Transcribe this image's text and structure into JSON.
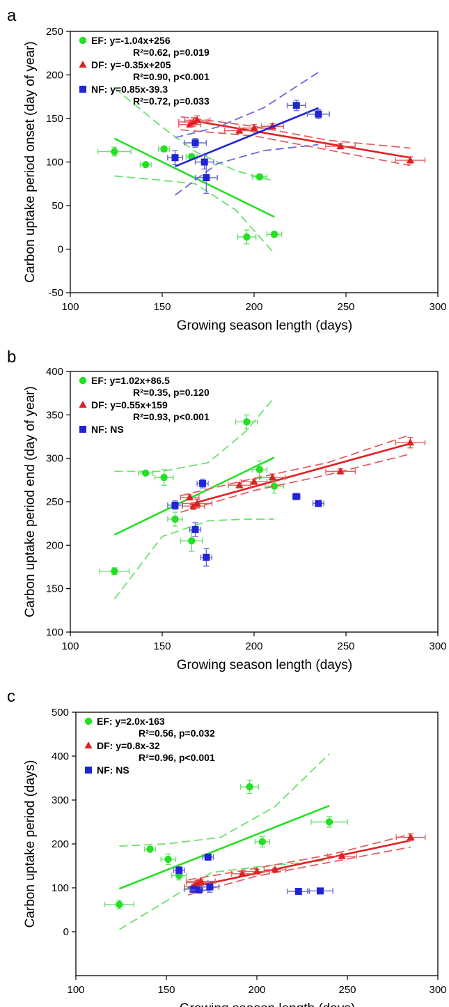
{
  "colors": {
    "EF": "#22e022",
    "DF": "#e02020",
    "NF": "#1f24d6",
    "EF_ci": "#6ee06e",
    "DF_ci": "#e06060",
    "NF_ci": "#6a6ad8"
  },
  "chart_data": [
    {
      "panel": "a",
      "type": "scatter",
      "xlabel": "Growing season length (days)",
      "ylabel": "Carbon uptake period onset (day of year)",
      "xlim": [
        100,
        300
      ],
      "ylim": [
        -50,
        250
      ],
      "xticks": [
        "100",
        "150",
        "200",
        "250",
        "300"
      ],
      "yticks": [
        "-50",
        "0",
        "50",
        "100",
        "150",
        "200",
        "250"
      ],
      "legend": [
        {
          "key": "EF",
          "marker": "circle",
          "line1": "EF: y=-1.04x+256",
          "line2": "R²=0.62, p=0.019"
        },
        {
          "key": "DF",
          "marker": "triangle",
          "line1": "DF: y=-0.35x+205",
          "line2": "R²=0.90, p<0.001"
        },
        {
          "key": "NF",
          "marker": "square",
          "line1": "NF: y=0.85x-39.3",
          "line2": "R²=0.72, p=0.033"
        }
      ],
      "series": [
        {
          "key": "EF",
          "marker": "circle",
          "points": [
            [
              124,
              112,
              9,
              5
            ],
            [
              141,
              97,
              3,
              2
            ],
            [
              151,
              115,
              3,
              3
            ],
            [
              157,
              105,
              4,
              8
            ],
            [
              166,
              106,
              3,
              3
            ],
            [
              203,
              83,
              4,
              3
            ],
            [
              196,
              14,
              5,
              8
            ],
            [
              211,
              17,
              4,
              3
            ]
          ],
          "fit": {
            "x": [
              124,
              211
            ],
            "y": [
              127,
              37
            ]
          },
          "ci_upper": [
            [
              124,
              185
            ],
            [
              150,
              140
            ],
            [
              168,
              112
            ],
            [
              190,
              90
            ],
            [
              211,
              78
            ]
          ],
          "ci_lower": [
            [
              124,
              84
            ],
            [
              145,
              80
            ],
            [
              168,
              75
            ],
            [
              190,
              45
            ],
            [
              211,
              -5
            ]
          ]
        },
        {
          "key": "DF",
          "marker": "triangle",
          "points": [
            [
              165,
              143,
              6,
              3
            ],
            [
              167,
              146,
              8,
              5
            ],
            [
              169,
              148,
              7,
              5
            ],
            [
              192,
              136,
              8,
              3
            ],
            [
              200,
              139,
              8,
              4
            ],
            [
              210,
              141,
              6,
              3
            ],
            [
              247,
              118,
              8,
              3
            ],
            [
              285,
              102,
              8,
              4
            ]
          ],
          "fit": {
            "x": [
              165,
              285
            ],
            "y": [
              148,
              105
            ]
          },
          "ci_upper": [
            [
              160,
              152
            ],
            [
              200,
              141
            ],
            [
              240,
              125
            ],
            [
              285,
              116
            ]
          ],
          "ci_lower": [
            [
              160,
              137
            ],
            [
              200,
              130
            ],
            [
              240,
              114
            ],
            [
              285,
              96
            ]
          ]
        },
        {
          "key": "NF",
          "marker": "square",
          "points": [
            [
              157,
              105,
              4,
              8
            ],
            [
              168,
              122,
              6,
              5
            ],
            [
              174,
              82,
              6,
              18
            ],
            [
              223,
              165,
              5,
              6
            ],
            [
              235,
              155,
              6,
              5
            ],
            [
              173,
              100,
              5,
              8
            ]
          ],
          "fit": {
            "x": [
              157,
              235
            ],
            "y": [
              95,
              162
            ]
          },
          "ci_upper": [
            [
              157,
              128
            ],
            [
              180,
              140
            ],
            [
              205,
              162
            ],
            [
              235,
              203
            ]
          ],
          "ci_lower": [
            [
              157,
              62
            ],
            [
              180,
              98
            ],
            [
              205,
              113
            ],
            [
              235,
              120
            ]
          ]
        }
      ]
    },
    {
      "panel": "b",
      "type": "scatter",
      "xlabel": "Growing season length (days)",
      "ylabel": "Carbon uptake period end (day of year)",
      "xlim": [
        100,
        300
      ],
      "ylim": [
        100,
        400
      ],
      "xticks": [
        "100",
        "150",
        "200",
        "250",
        "300"
      ],
      "yticks": [
        "100",
        "150",
        "200",
        "250",
        "300",
        "350",
        "400"
      ],
      "legend": [
        {
          "key": "EF",
          "marker": "circle",
          "line1": "EF: y=1.02x+86.5",
          "line2": "R²=0.35, p=0.120"
        },
        {
          "key": "DF",
          "marker": "triangle",
          "line1": "DF: y=0.55x+159",
          "line2": "R²=0.93, p<0.001"
        },
        {
          "key": "NF",
          "marker": "square",
          "line1": "NF: NS",
          "line2": ""
        }
      ],
      "series": [
        {
          "key": "EF",
          "marker": "circle",
          "points": [
            [
              124,
              170,
              8,
              4
            ],
            [
              141,
              283,
              4,
              2
            ],
            [
              151,
              278,
              5,
              9
            ],
            [
              157,
              230,
              4,
              8
            ],
            [
              166,
              205,
              6,
              12
            ],
            [
              196,
              342,
              6,
              8
            ],
            [
              203,
              287,
              4,
              10
            ],
            [
              211,
              268,
              5,
              8
            ]
          ],
          "fit": {
            "x": [
              124,
              211
            ],
            "y": [
              212,
              301
            ]
          },
          "ci_upper": [
            [
              124,
              285
            ],
            [
              150,
              285
            ],
            [
              175,
              295
            ],
            [
              195,
              330
            ],
            [
              211,
              370
            ]
          ],
          "ci_lower": [
            [
              124,
              138
            ],
            [
              150,
              210
            ],
            [
              175,
              228
            ],
            [
              195,
              230
            ],
            [
              211,
              230
            ]
          ]
        },
        {
          "key": "DF",
          "marker": "triangle",
          "points": [
            [
              165,
              255,
              5,
              3
            ],
            [
              167,
              245,
              6,
              4
            ],
            [
              169,
              248,
              8,
              5
            ],
            [
              192,
              269,
              6,
              3
            ],
            [
              200,
              273,
              7,
              3
            ],
            [
              210,
              278,
              7,
              4
            ],
            [
              247,
              285,
              8,
              3
            ],
            [
              285,
              318,
              8,
              6
            ]
          ],
          "fit": {
            "x": [
              165,
              285
            ],
            "y": [
              247,
              317
            ]
          },
          "ci_upper": [
            [
              160,
              257
            ],
            [
              200,
              277
            ],
            [
              240,
              295
            ],
            [
              285,
              327
            ]
          ],
          "ci_lower": [
            [
              160,
              238
            ],
            [
              200,
              263
            ],
            [
              240,
              281
            ],
            [
              285,
              305
            ]
          ]
        },
        {
          "key": "NF",
          "marker": "square",
          "points": [
            [
              157,
              246,
              4,
              5
            ],
            [
              168,
              218,
              3,
              8
            ],
            [
              172,
              271,
              3,
              5
            ],
            [
              174,
              186,
              3,
              10
            ],
            [
              223,
              256,
              2,
              2
            ],
            [
              235,
              248,
              3,
              2
            ]
          ]
        }
      ]
    },
    {
      "panel": "c",
      "type": "scatter",
      "xlabel": "Growing season length (days)",
      "ylabel": "Carbon uptake period (days)",
      "xlim": [
        100,
        300
      ],
      "ylim": [
        -100,
        500
      ],
      "xticks": [
        "100",
        "150",
        "200",
        "250",
        "300"
      ],
      "yticks": [
        "0",
        "100",
        "200",
        "300",
        "400",
        "500"
      ],
      "legend": [
        {
          "key": "EF",
          "marker": "circle",
          "line1": "EF: y=2.0x-163",
          "line2": "R²=0.56, p=0.032"
        },
        {
          "key": "DF",
          "marker": "triangle",
          "line1": "DF: y=0.8x-32",
          "line2": "R²=0.96, p<0.001"
        },
        {
          "key": "NF",
          "marker": "square",
          "line1": "NF: NS",
          "line2": ""
        }
      ],
      "series": [
        {
          "key": "EF",
          "marker": "circle",
          "points": [
            [
              124,
              62,
              8,
              10
            ],
            [
              141,
              188,
              3,
              4
            ],
            [
              151,
              165,
              4,
              12
            ],
            [
              157,
              128,
              4,
              10
            ],
            [
              196,
              330,
              5,
              15
            ],
            [
              203,
              205,
              4,
              12
            ],
            [
              240,
              250,
              10,
              12
            ]
          ],
          "fit": {
            "x": [
              124,
              240
            ],
            "y": [
              98,
              287
            ]
          },
          "ci_upper": [
            [
              124,
              195
            ],
            [
              150,
              200
            ],
            [
              180,
              215
            ],
            [
              210,
              285
            ],
            [
              240,
              405
            ]
          ],
          "ci_lower": [
            [
              124,
              5
            ],
            [
              150,
              70
            ],
            [
              175,
              135
            ],
            [
              205,
              150
            ],
            [
              240,
              163
            ]
          ]
        },
        {
          "key": "DF",
          "marker": "triangle",
          "points": [
            [
              165,
              103,
              5,
              4
            ],
            [
              167,
              112,
              6,
              4
            ],
            [
              169,
              115,
              8,
              5
            ],
            [
              192,
              132,
              6,
              4
            ],
            [
              200,
              137,
              7,
              5
            ],
            [
              210,
              141,
              6,
              4
            ],
            [
              247,
              172,
              8,
              5
            ],
            [
              285,
              215,
              8,
              8
            ]
          ],
          "fit": {
            "x": [
              162,
              285
            ],
            "y": [
              100,
              208
            ]
          },
          "ci_upper": [
            [
              162,
              118
            ],
            [
              200,
              145
            ],
            [
              240,
              175
            ],
            [
              285,
              222
            ]
          ],
          "ci_lower": [
            [
              162,
              84
            ],
            [
              200,
              127
            ],
            [
              240,
              158
            ],
            [
              285,
              193
            ]
          ]
        },
        {
          "key": "NF",
          "marker": "square",
          "points": [
            [
              157,
              140,
              3,
              8
            ],
            [
              165,
              97,
              5,
              5
            ],
            [
              168,
              95,
              5,
              5
            ],
            [
              173,
              170,
              3,
              6
            ],
            [
              174,
              102,
              5,
              12
            ],
            [
              223,
              92,
              6,
              3
            ],
            [
              235,
              93,
              7,
              3
            ]
          ]
        }
      ]
    }
  ],
  "panel_labels": [
    "a",
    "b",
    "c"
  ]
}
